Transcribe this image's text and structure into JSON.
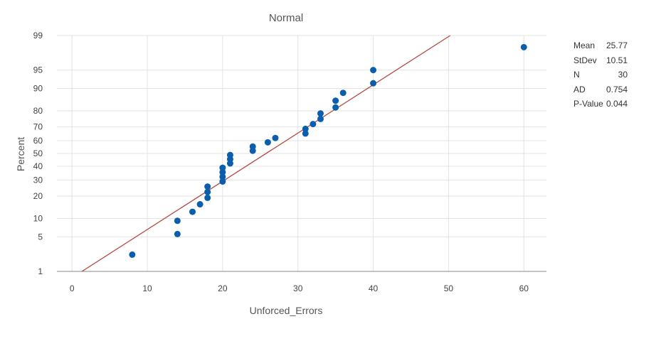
{
  "chart_data": {
    "type": "scatter",
    "title": "Normal",
    "xlabel": "Unforced_Errors",
    "ylabel": "Percent",
    "xlim": [
      -2,
      63
    ],
    "xticks": [
      0,
      10,
      20,
      30,
      40,
      50,
      60
    ],
    "yscale": "normal-probability",
    "ylim": [
      1,
      99
    ],
    "yticks": [
      1,
      5,
      10,
      20,
      30,
      40,
      50,
      60,
      70,
      80,
      90,
      95,
      99
    ],
    "grid": true,
    "fit_line": {
      "mean": 25.77,
      "stdev": 10.51,
      "color": "#b5483f"
    },
    "point_color": "#0b5ead",
    "points": [
      {
        "x": 8,
        "y": 2.3
      },
      {
        "x": 14,
        "y": 5.6
      },
      {
        "x": 14,
        "y": 9.2
      },
      {
        "x": 16,
        "y": 12.5
      },
      {
        "x": 17,
        "y": 15.8
      },
      {
        "x": 18,
        "y": 19.1
      },
      {
        "x": 18,
        "y": 22.4
      },
      {
        "x": 18,
        "y": 25.7
      },
      {
        "x": 20,
        "y": 29.0
      },
      {
        "x": 20,
        "y": 32.3
      },
      {
        "x": 20,
        "y": 35.6
      },
      {
        "x": 20,
        "y": 38.9
      },
      {
        "x": 21,
        "y": 42.2
      },
      {
        "x": 21,
        "y": 45.5
      },
      {
        "x": 21,
        "y": 48.8
      },
      {
        "x": 24,
        "y": 52.1
      },
      {
        "x": 24,
        "y": 55.4
      },
      {
        "x": 26,
        "y": 58.7
      },
      {
        "x": 27,
        "y": 62.0
      },
      {
        "x": 31,
        "y": 65.3
      },
      {
        "x": 31,
        "y": 68.6
      },
      {
        "x": 32,
        "y": 71.9
      },
      {
        "x": 33,
        "y": 75.2
      },
      {
        "x": 33,
        "y": 78.5
      },
      {
        "x": 35,
        "y": 81.8
      },
      {
        "x": 35,
        "y": 85.1
      },
      {
        "x": 36,
        "y": 88.4
      },
      {
        "x": 40,
        "y": 91.7
      },
      {
        "x": 40,
        "y": 95.0
      },
      {
        "x": 60,
        "y": 98.2
      }
    ]
  },
  "stats": [
    {
      "label": "Mean",
      "value": "25.77"
    },
    {
      "label": "StDev",
      "value": "10.51"
    },
    {
      "label": "N",
      "value": "30"
    },
    {
      "label": "AD",
      "value": "0.754"
    },
    {
      "label": "P-Value",
      "value": "0.044"
    }
  ]
}
